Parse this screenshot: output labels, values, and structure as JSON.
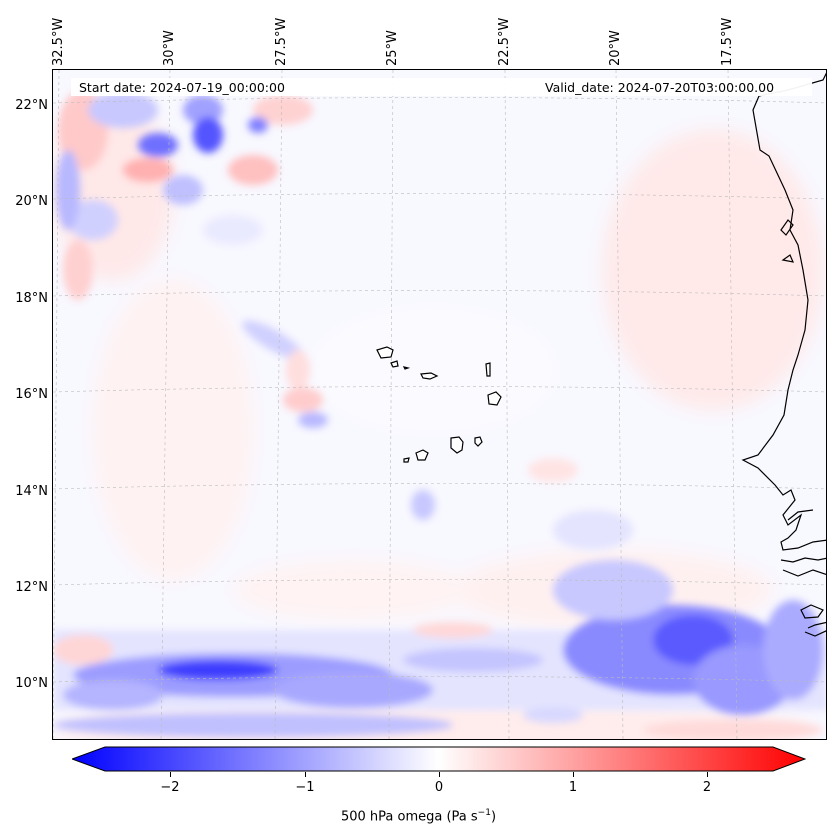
{
  "header": {
    "start_date": "Start date: 2024-07-19_00:00:00",
    "valid_date": "Valid_date: 2024-07-20T03:00:00.00"
  },
  "longitude_labels": [
    "32.5°W",
    "30°W",
    "27.5°W",
    "25°W",
    "22.5°W",
    "20°W",
    "17.5°W"
  ],
  "latitude_labels": [
    "22°N",
    "20°N",
    "18°N",
    "16°N",
    "14°N",
    "12°N",
    "10°N"
  ],
  "colorbar": {
    "label_main": "500 hPa omega (Pa s",
    "label_exp": "−1",
    "label_end": ")",
    "ticks": [
      "−2",
      "−1",
      "0",
      "1",
      "2"
    ],
    "colors": {
      "min": "#0000ff",
      "mid": "#ffffff",
      "max": "#ff0000"
    }
  },
  "map": {
    "field": "500 hPa omega",
    "region": "Cape Verde Islands and West African coast"
  }
}
